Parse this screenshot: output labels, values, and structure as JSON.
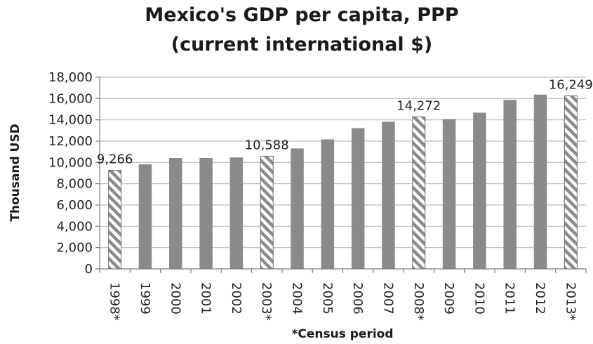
{
  "chart_data": {
    "type": "bar",
    "title_lines": [
      "Mexico's GDP per capita, PPP",
      "(current international $)"
    ],
    "xlabel": "*Census period",
    "ylabel": "Thousand  USD",
    "ylim": [
      0,
      18000
    ],
    "yticks": [
      0,
      2000,
      4000,
      6000,
      8000,
      10000,
      12000,
      14000,
      16000,
      18000
    ],
    "ytick_labels": [
      "0",
      "2,000",
      "4,000",
      "6,000",
      "8,000",
      "10,000",
      "12,000",
      "14,000",
      "16,000",
      "18,000"
    ],
    "grid": true,
    "categories": [
      "1998*",
      "1999",
      "2000",
      "2001",
      "2002",
      "2003*",
      "2004",
      "2005",
      "2006",
      "2007",
      "2008*",
      "2009",
      "2010",
      "2011",
      "2012",
      "2013*"
    ],
    "values": [
      9266,
      9800,
      10400,
      10400,
      10450,
      10588,
      11300,
      12150,
      13200,
      13800,
      14272,
      14050,
      14650,
      15850,
      16350,
      16249
    ],
    "census": [
      true,
      false,
      false,
      false,
      false,
      true,
      false,
      false,
      false,
      false,
      true,
      false,
      false,
      false,
      false,
      true
    ],
    "data_labels": [
      {
        "index": 0,
        "text": "9,266"
      },
      {
        "index": 5,
        "text": "10,588"
      },
      {
        "index": 10,
        "text": "14,272"
      },
      {
        "index": 15,
        "text": "16,249"
      }
    ],
    "colors": {
      "bar": "#8a8a8a",
      "bar_edge": "#6f6f6f",
      "hatch": "#8a8a8a",
      "grid": "#bcbcbc",
      "axis": "#7a7a7a"
    }
  }
}
